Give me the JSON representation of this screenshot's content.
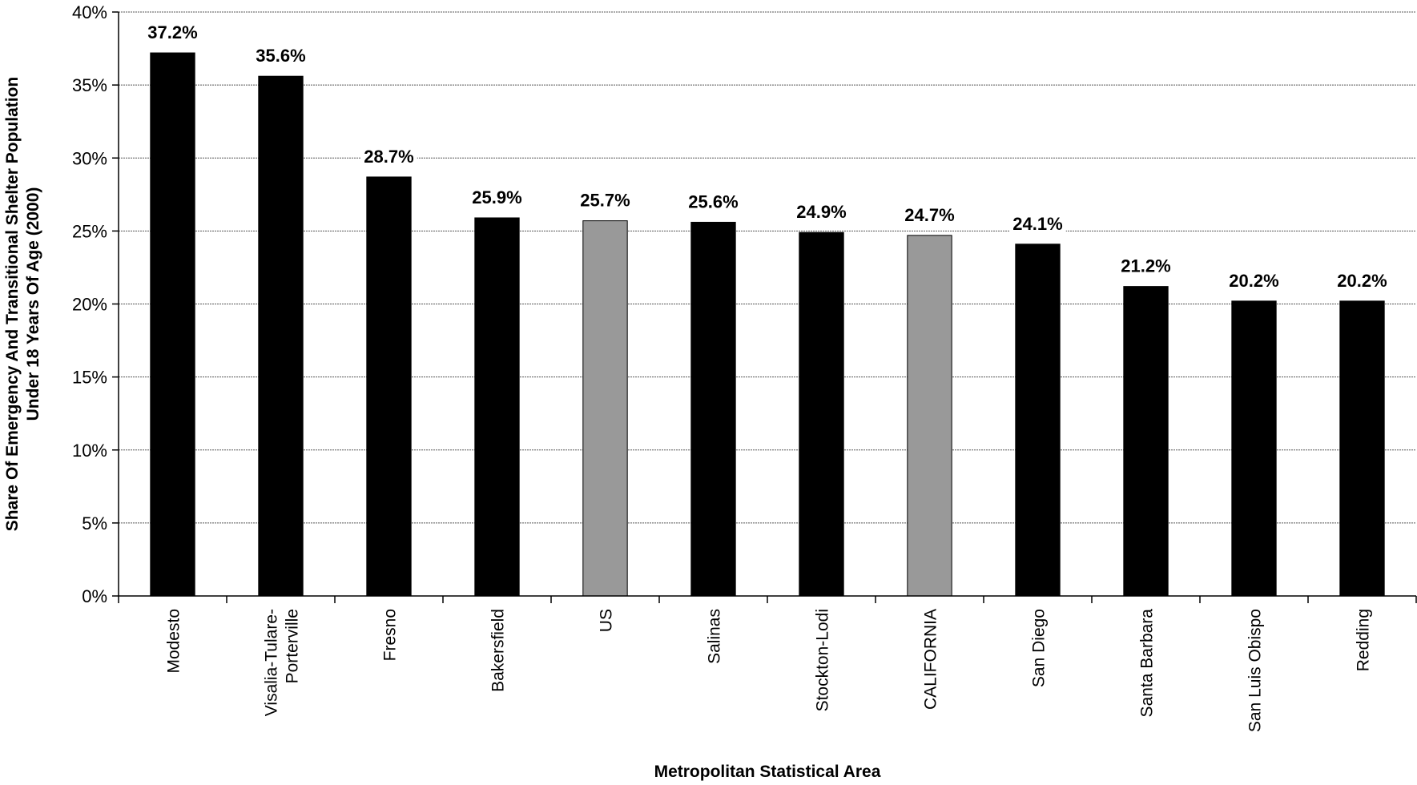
{
  "chart_data": {
    "type": "bar",
    "categories": [
      "Modesto",
      "Visalia-Tulare-Porterville",
      "Fresno",
      "Bakersfield",
      "US",
      "Salinas",
      "Stockton-Lodi",
      "CALIFORNIA",
      "San Diego",
      "Santa Barbara",
      "San Luis Obispo",
      "Redding"
    ],
    "category_lines": [
      [
        "Modesto"
      ],
      [
        "Visalia-Tulare-",
        "Porterville"
      ],
      [
        "Fresno"
      ],
      [
        "Bakersfield"
      ],
      [
        "US"
      ],
      [
        "Salinas"
      ],
      [
        "Stockton-Lodi"
      ],
      [
        "CALIFORNIA"
      ],
      [
        "San Diego"
      ],
      [
        "Santa Barbara"
      ],
      [
        "San Luis Obispo"
      ],
      [
        "Redding"
      ]
    ],
    "values": [
      37.2,
      35.6,
      28.7,
      25.9,
      25.7,
      25.6,
      24.9,
      24.7,
      24.1,
      21.2,
      20.2,
      20.2
    ],
    "data_labels": [
      "37.2%",
      "35.6%",
      "28.7%",
      "25.9%",
      "25.7%",
      "25.6%",
      "24.9%",
      "24.7%",
      "24.1%",
      "21.2%",
      "20.2%",
      "20.2%"
    ],
    "bar_colors": [
      "#000000",
      "#000000",
      "#000000",
      "#000000",
      "#999999",
      "#000000",
      "#000000",
      "#999999",
      "#000000",
      "#000000",
      "#000000",
      "#000000"
    ],
    "title": "",
    "xlabel": "Metropolitan Statistical Area",
    "ylabel_lines": [
      "Share Of Emergency And Transitional Shelter Population",
      "Under 18 Years Of Age (2000)"
    ],
    "ylim": [
      0,
      40
    ],
    "yticks": [
      0,
      5,
      10,
      15,
      20,
      25,
      30,
      35,
      40
    ],
    "ytick_labels": [
      "0%",
      "5%",
      "10%",
      "15%",
      "20%",
      "25%",
      "30%",
      "35%",
      "40%"
    ],
    "grid": true,
    "legend": "none"
  }
}
